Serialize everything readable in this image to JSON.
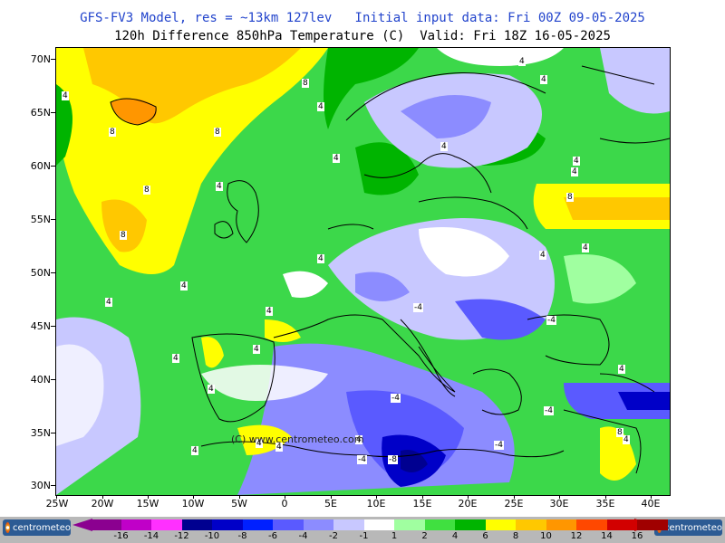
{
  "header": {
    "title_line1": "GFS-FV3 Model, res = ~13km 127lev   Initial input data: Fri 00Z 09-05-2025",
    "title_line2": "120h Difference 850hPa Temperature (C)  Valid: Fri 18Z 16-05-2025"
  },
  "map": {
    "watermark": "(C) www.centrometeo.com",
    "lat_labels": [
      "70N",
      "65N",
      "60N",
      "55N",
      "50N",
      "45N",
      "40N",
      "35N",
      "30N"
    ],
    "lon_labels": [
      "25W",
      "20W",
      "15W",
      "10W",
      "5W",
      "0",
      "5E",
      "10E",
      "15E",
      "20E",
      "25E",
      "30E",
      "35E",
      "40E"
    ],
    "contour_labels": [
      "4",
      "8",
      "4",
      "8",
      "8",
      "4",
      "8",
      "8",
      "4",
      "4",
      "4",
      "4",
      "4",
      "4",
      "4",
      "4",
      "8",
      "4",
      "4",
      "4",
      "4",
      "4",
      "4",
      "4",
      "4",
      "-4",
      "-4",
      "-4",
      "-4",
      "-4",
      "-4",
      "-8",
      "4",
      "8",
      "4",
      "4",
      "4",
      "4"
    ]
  },
  "colorbar": {
    "labels": [
      "-16",
      "-14",
      "-12",
      "-10",
      "-8",
      "-6",
      "-4",
      "-2",
      "-1",
      "1",
      "2",
      "4",
      "6",
      "8",
      "10",
      "12",
      "14",
      "16"
    ],
    "colors": [
      "#8b0090",
      "#c000c8",
      "#ff30ff",
      "#000090",
      "#0000c8",
      "#0020ff",
      "#5a5aff",
      "#8c8cff",
      "#c8c8ff",
      "#ffffff",
      "#a0ffa0",
      "#40e040",
      "#00b400",
      "#ffff00",
      "#ffc800",
      "#ff9600",
      "#ff4800",
      "#d20000",
      "#a00000"
    ],
    "brand": "centrometeo"
  }
}
